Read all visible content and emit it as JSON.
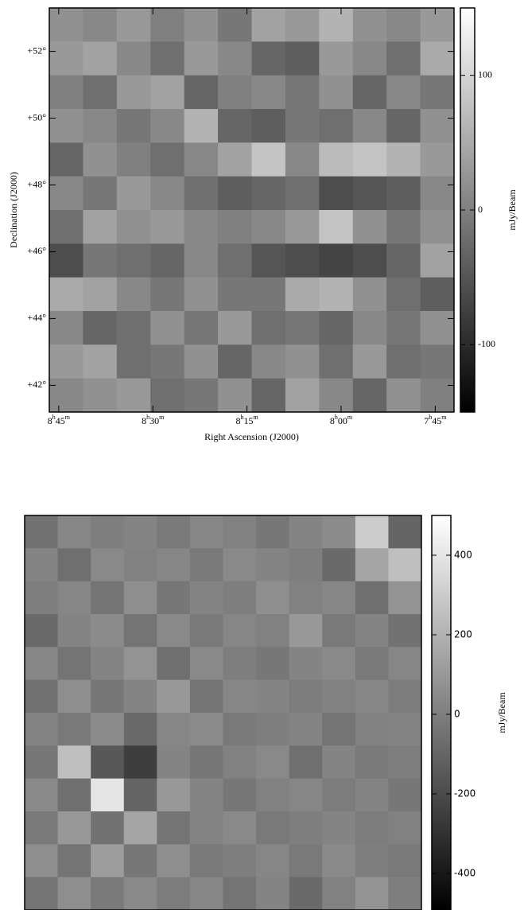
{
  "chart_data": [
    {
      "type": "heatmap",
      "xlabel": "Right Ascension (J2000)",
      "ylabel": "Declination (J2000)",
      "xlim": [
        526.5,
        462
      ],
      "xticks": [
        {
          "value": 525,
          "label": "8h45m"
        },
        {
          "value": 510,
          "label": "8h30m"
        },
        {
          "value": 495,
          "label": "8h15m"
        },
        {
          "value": 480,
          "label": "8h00m"
        },
        {
          "value": 465,
          "label": "7h45m"
        }
      ],
      "ylim": [
        41.2,
        53.3
      ],
      "yticks": [
        {
          "value": 42,
          "label": "+42°"
        },
        {
          "value": 44,
          "label": "+44°"
        },
        {
          "value": 46,
          "label": "+46°"
        },
        {
          "value": 48,
          "label": "+48°"
        },
        {
          "value": 50,
          "label": "+50°"
        },
        {
          "value": 52,
          "label": "+52°"
        }
      ],
      "z": [
        [
          20,
          10,
          30,
          0,
          20,
          -10,
          40,
          30,
          60,
          20,
          10,
          30
        ],
        [
          30,
          40,
          10,
          -20,
          30,
          10,
          -30,
          -40,
          30,
          10,
          -20,
          50
        ],
        [
          0,
          -20,
          30,
          40,
          -30,
          0,
          10,
          -10,
          20,
          -30,
          10,
          -10
        ],
        [
          20,
          10,
          -10,
          10,
          60,
          -30,
          -40,
          -10,
          -20,
          10,
          -30,
          20
        ],
        [
          -30,
          20,
          0,
          -20,
          10,
          40,
          80,
          10,
          70,
          80,
          60,
          30
        ],
        [
          10,
          -10,
          30,
          10,
          -20,
          -40,
          -30,
          -20,
          -60,
          -50,
          -40,
          10
        ],
        [
          -20,
          40,
          20,
          30,
          10,
          0,
          10,
          30,
          80,
          20,
          -10,
          20
        ],
        [
          -60,
          -10,
          -20,
          -30,
          10,
          -20,
          -50,
          -60,
          -70,
          -60,
          -30,
          40
        ],
        [
          50,
          40,
          10,
          -10,
          20,
          -10,
          -10,
          50,
          60,
          20,
          -20,
          -40
        ],
        [
          10,
          -30,
          -20,
          20,
          -10,
          30,
          -20,
          -10,
          -30,
          10,
          -10,
          20
        ],
        [
          30,
          40,
          -20,
          -10,
          20,
          -30,
          10,
          20,
          -20,
          30,
          -20,
          -10
        ],
        [
          10,
          20,
          30,
          -20,
          -10,
          20,
          -30,
          40,
          10,
          -30,
          20,
          0
        ]
      ],
      "cmap": "gray",
      "zlim": [
        -150,
        150
      ],
      "zticks": [
        -100,
        0,
        100
      ],
      "colorbar_label": "mJy/Beam"
    },
    {
      "type": "heatmap",
      "z": [
        [
          -50,
          30,
          0,
          20,
          -20,
          30,
          10,
          -30,
          20,
          50,
          300,
          -100
        ],
        [
          20,
          -60,
          40,
          10,
          30,
          -20,
          40,
          20,
          0,
          -80,
          150,
          250
        ],
        [
          0,
          30,
          -40,
          60,
          -30,
          20,
          0,
          60,
          10,
          30,
          -60,
          80
        ],
        [
          -80,
          20,
          50,
          -40,
          40,
          -20,
          30,
          10,
          100,
          -20,
          20,
          -50
        ],
        [
          30,
          -40,
          20,
          80,
          -60,
          40,
          0,
          -30,
          20,
          40,
          -20,
          30
        ],
        [
          -50,
          60,
          -30,
          20,
          100,
          -40,
          30,
          20,
          -10,
          10,
          30,
          -10
        ],
        [
          20,
          -20,
          50,
          -80,
          30,
          50,
          -20,
          0,
          20,
          -40,
          10,
          20
        ],
        [
          -30,
          250,
          -150,
          -250,
          20,
          -30,
          10,
          40,
          -60,
          20,
          -20,
          0
        ],
        [
          40,
          -60,
          400,
          -100,
          100,
          20,
          -30,
          10,
          30,
          -10,
          20,
          -30
        ],
        [
          -20,
          100,
          -50,
          150,
          -40,
          20,
          40,
          -20,
          0,
          20,
          -10,
          10
        ],
        [
          60,
          -40,
          120,
          -30,
          60,
          -20,
          0,
          30,
          -20,
          40,
          0,
          -20
        ],
        [
          -40,
          60,
          -20,
          40,
          -10,
          30,
          -40,
          20,
          -80,
          10,
          80,
          0
        ]
      ],
      "cmap": "gray",
      "zlim": [
        -492,
        500
      ],
      "zticks": [
        -400,
        -200,
        0,
        200,
        400
      ],
      "colorbar_label": "mJy/Beam"
    }
  ]
}
